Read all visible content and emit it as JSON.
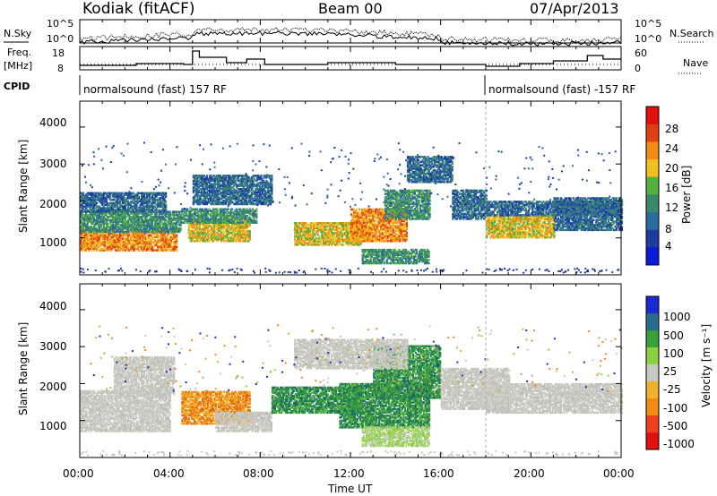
{
  "header": {
    "station": "Kodiak (fitACF)",
    "beam": "Beam 00",
    "date": "07/Apr/2013"
  },
  "noise_panel": {
    "left_label": "N.Sky",
    "right_label": "N.Search",
    "left_ticks": [
      "10^5",
      "10^0"
    ],
    "right_ticks": [
      "10^5",
      "10^0"
    ]
  },
  "freq_panel": {
    "left_label_1": "Freq.",
    "left_label_2": "[MHz]",
    "right_label": "Nave",
    "left_ticks": [
      "18",
      "8"
    ],
    "right_ticks": [
      "60",
      "0"
    ]
  },
  "cpid_panel": {
    "label": "CPID",
    "segments": [
      {
        "text": "normalsound (fast) 157 RF",
        "start_hour": 0.0
      },
      {
        "text": "normalsound (fast) -157 RF",
        "start_hour": 18.0
      }
    ]
  },
  "x_axis": {
    "label": "Time UT",
    "ticks": [
      "00:00",
      "04:00",
      "08:00",
      "12:00",
      "16:00",
      "20:00",
      "00:00"
    ],
    "range_hours": [
      0,
      24
    ]
  },
  "colors": {
    "power": [
      "#0a1ad8",
      "#1f3aa0",
      "#2c6b9c",
      "#3a8a6a",
      "#55b040",
      "#f0c020",
      "#f08a10",
      "#e04010",
      "#e01010"
    ],
    "velocity": [
      "#e01010",
      "#f04020",
      "#f08a10",
      "#f0b030",
      "#c8c8c0",
      "#8ad040",
      "#3aa03a",
      "#2a6a8a",
      "#1a2ad0"
    ]
  },
  "chart_data": [
    {
      "type": "heatmap",
      "name": "power",
      "ylabel": "Slant Range [km]",
      "yticks": [
        "1000",
        "2000",
        "3000",
        "4000"
      ],
      "ylim": [
        0,
        4700
      ],
      "colorbar_label": "Power [dB]",
      "colorbar_ticks": [
        "4",
        "8",
        "12",
        "16",
        "20",
        "24",
        "28"
      ],
      "colorbar_range": [
        0,
        32
      ],
      "blobs": [
        {
          "t0": 0.0,
          "t1": 4.3,
          "r0": 650,
          "r1": 1200,
          "v": 24
        },
        {
          "t0": 0.0,
          "t1": 4.5,
          "r0": 1150,
          "r1": 1700,
          "v": 12
        },
        {
          "t0": 0.0,
          "t1": 3.8,
          "r0": 1700,
          "r1": 2200,
          "v": 8
        },
        {
          "t0": 4.8,
          "t1": 7.5,
          "r0": 900,
          "r1": 1500,
          "v": 20
        },
        {
          "t0": 4.5,
          "t1": 7.8,
          "r0": 1400,
          "r1": 1800,
          "v": 12
        },
        {
          "t0": 5.0,
          "t1": 8.5,
          "r0": 1900,
          "r1": 2700,
          "v": 8
        },
        {
          "t0": 9.5,
          "t1": 12.5,
          "r0": 800,
          "r1": 1400,
          "v": 20
        },
        {
          "t0": 12.0,
          "t1": 14.5,
          "r0": 900,
          "r1": 1800,
          "v": 24
        },
        {
          "t0": 13.5,
          "t1": 15.5,
          "r0": 1500,
          "r1": 2300,
          "v": 12
        },
        {
          "t0": 14.5,
          "t1": 16.5,
          "r0": 2500,
          "r1": 3200,
          "v": 8
        },
        {
          "t0": 16.5,
          "t1": 18.0,
          "r0": 1500,
          "r1": 2300,
          "v": 8
        },
        {
          "t0": 18.0,
          "t1": 21.0,
          "r0": 1000,
          "r1": 1600,
          "v": 20
        },
        {
          "t0": 18.0,
          "t1": 24.0,
          "r0": 1600,
          "r1": 2000,
          "v": 8
        },
        {
          "t0": 21.0,
          "t1": 24.0,
          "r0": 1200,
          "r1": 2100,
          "v": 8
        },
        {
          "t0": 12.5,
          "t1": 15.5,
          "r0": 300,
          "r1": 700,
          "v": 12
        }
      ]
    },
    {
      "type": "heatmap",
      "name": "velocity",
      "ylabel": "Slant Range [km]",
      "yticks": [
        "1000",
        "2000",
        "3000",
        "4000"
      ],
      "ylim": [
        0,
        4700
      ],
      "colorbar_label": "Velocity [m s⁻¹]",
      "colorbar_ticks": [
        "1000",
        "500",
        "100",
        "25",
        "-25",
        "-100",
        "-500",
        "-1000"
      ],
      "blobs": [
        {
          "t0": 0.0,
          "t1": 4.0,
          "r0": 700,
          "r1": 1800,
          "v": "grey"
        },
        {
          "t0": 1.5,
          "t1": 4.2,
          "r0": 1700,
          "r1": 2700,
          "v": "grey"
        },
        {
          "t0": 4.5,
          "t1": 7.5,
          "r0": 900,
          "r1": 1800,
          "v": "orange"
        },
        {
          "t0": 6.0,
          "t1": 8.5,
          "r0": 700,
          "r1": 1200,
          "v": "grey"
        },
        {
          "t0": 8.5,
          "t1": 12.5,
          "r0": 1200,
          "r1": 1900,
          "v": "green"
        },
        {
          "t0": 11.5,
          "t1": 15.5,
          "r0": 800,
          "r1": 2000,
          "v": "green"
        },
        {
          "t0": 13.0,
          "t1": 16.0,
          "r0": 1600,
          "r1": 3000,
          "v": "green"
        },
        {
          "t0": 12.5,
          "t1": 15.5,
          "r0": 300,
          "r1": 800,
          "v": "lightgreen"
        },
        {
          "t0": 16.0,
          "t1": 19.0,
          "r0": 1300,
          "r1": 2400,
          "v": "grey"
        },
        {
          "t0": 18.0,
          "t1": 24.0,
          "r0": 1200,
          "r1": 2000,
          "v": "grey"
        },
        {
          "t0": 9.5,
          "t1": 14.5,
          "r0": 2400,
          "r1": 3200,
          "v": "grey"
        }
      ]
    }
  ]
}
